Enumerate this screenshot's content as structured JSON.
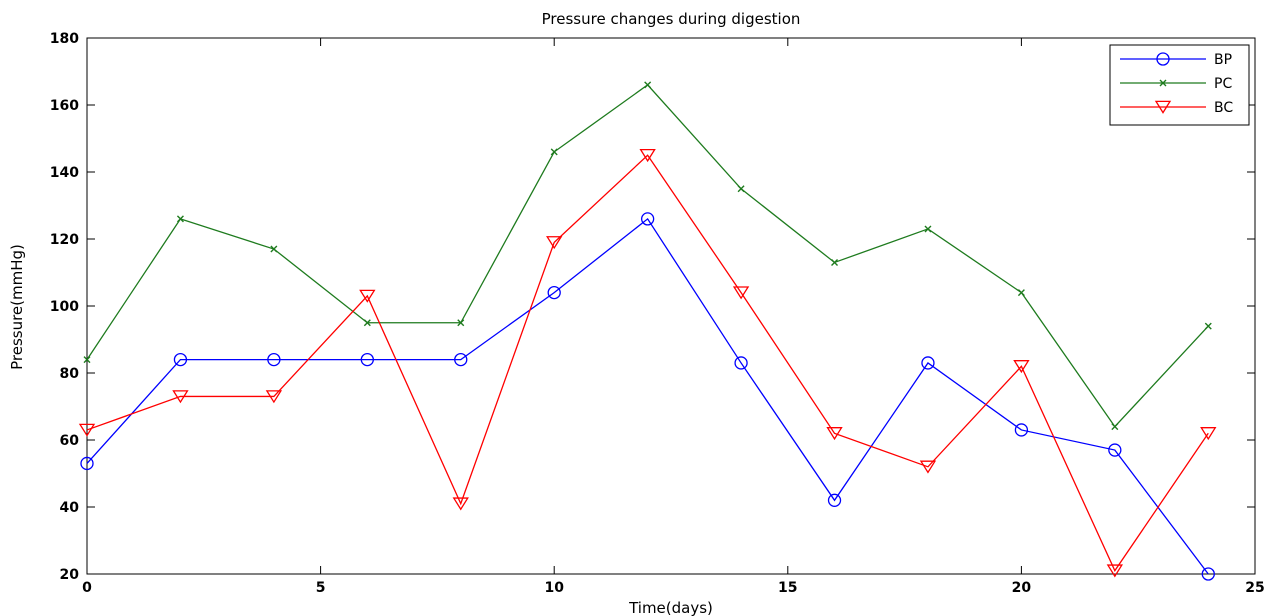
{
  "chart_data": {
    "type": "line",
    "title": "Pressure changes during digestion",
    "xlabel": "Time(days)",
    "ylabel": "Pressure(mmHg)",
    "xlim": [
      0,
      25
    ],
    "ylim": [
      20,
      180
    ],
    "xticks": [
      "0",
      "5",
      "10",
      "15",
      "20",
      "25"
    ],
    "yticks": [
      "20",
      "40",
      "60",
      "80",
      "100",
      "120",
      "140",
      "160",
      "180"
    ],
    "grid": false,
    "legend_position": "top-right",
    "x": [
      0,
      2,
      4,
      6,
      8,
      10,
      12,
      14,
      16,
      18,
      20,
      22,
      24
    ],
    "series": [
      {
        "name": "BP",
        "color": "#0000ff",
        "marker": "circle",
        "values": [
          53,
          84,
          84,
          84,
          84,
          104,
          126,
          83,
          42,
          83,
          63,
          57,
          20
        ]
      },
      {
        "name": "PC",
        "color": "#1e7b1e",
        "marker": "x",
        "values": [
          84,
          126,
          117,
          95,
          95,
          146,
          166,
          135,
          113,
          123,
          104,
          64,
          94
        ]
      },
      {
        "name": "BC",
        "color": "#ff0000",
        "marker": "triangle-down",
        "values": [
          63,
          73,
          73,
          103,
          41,
          119,
          145,
          104,
          62,
          52,
          82,
          21,
          62
        ]
      }
    ]
  }
}
